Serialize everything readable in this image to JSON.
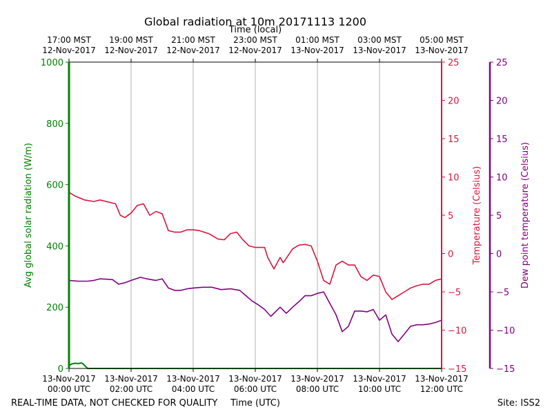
{
  "chart_data": {
    "type": "line",
    "title": "Global radiation at 10m 20171113 1200",
    "top_axis_label": "Time (local)",
    "xlabel": "Time (UTC)",
    "ylabel_left": "Avg global solar radiation (W/m)",
    "ylabel_right1": "Temperature (Celsius)",
    "ylabel_right2": "Dew point temperature (Celsius)",
    "xlim_hours_utc": [
      0,
      12
    ],
    "ylim_left": [
      0,
      1000
    ],
    "ylim_right": [
      -15,
      25
    ],
    "left_ticks": [
      "0",
      "200",
      "400",
      "600",
      "800",
      "1000"
    ],
    "left_tick_values": [
      0,
      200,
      400,
      600,
      800,
      1000
    ],
    "right_ticks": [
      "−15",
      "−10",
      "−5",
      "0",
      "5",
      "10",
      "15",
      "20",
      "25"
    ],
    "right_tick_values": [
      -15,
      -10,
      -5,
      0,
      5,
      10,
      15,
      20,
      25
    ],
    "bottom_ticks": [
      {
        "hour": 0,
        "line1": "13-Nov-2017",
        "line2": "00:00 UTC"
      },
      {
        "hour": 2,
        "line1": "13-Nov-2017",
        "line2": "02:00 UTC"
      },
      {
        "hour": 4,
        "line1": "13-Nov-2017",
        "line2": "04:00 UTC"
      },
      {
        "hour": 6,
        "line1": "13-Nov-2017",
        "line2": "06:00 UTC"
      },
      {
        "hour": 8,
        "line1": "13-Nov-2017",
        "line2": "08:00 UTC"
      },
      {
        "hour": 10,
        "line1": "13-Nov-2017",
        "line2": "10:00 UTC"
      },
      {
        "hour": 12,
        "line1": "13-Nov-2017",
        "line2": "12:00 UTC"
      }
    ],
    "top_ticks": [
      {
        "hour": 0,
        "line1": "17:00 MST",
        "line2": "12-Nov-2017"
      },
      {
        "hour": 2,
        "line1": "19:00 MST",
        "line2": "12-Nov-2017"
      },
      {
        "hour": 4,
        "line1": "21:00 MST",
        "line2": "12-Nov-2017"
      },
      {
        "hour": 6,
        "line1": "23:00 MST",
        "line2": "12-Nov-2017"
      },
      {
        "hour": 8,
        "line1": "01:00 MST",
        "line2": "13-Nov-2017"
      },
      {
        "hour": 10,
        "line1": "03:00 MST",
        "line2": "13-Nov-2017"
      },
      {
        "hour": 12,
        "line1": "05:00 MST",
        "line2": "13-Nov-2017"
      }
    ],
    "series": [
      {
        "name": "Avg global solar radiation",
        "axis": "left",
        "color": "#008000",
        "x": [
          0,
          0.1,
          0.2,
          0.3,
          0.4,
          0.45,
          0.5,
          0.55,
          0.6,
          12
        ],
        "y": [
          10,
          15,
          17,
          16,
          18,
          15,
          10,
          5,
          0,
          0
        ]
      },
      {
        "name": "Temperature",
        "axis": "right",
        "color": "#dc143c",
        "x": [
          0,
          0.2,
          0.5,
          0.8,
          1.0,
          1.5,
          1.65,
          1.8,
          2.0,
          2.2,
          2.4,
          2.6,
          2.8,
          3.0,
          3.2,
          3.4,
          3.5,
          3.6,
          3.8,
          4.0,
          4.2,
          4.5,
          4.8,
          5.0,
          5.2,
          5.4,
          5.6,
          5.8,
          6.0,
          6.3,
          6.4,
          6.6,
          6.8,
          6.9,
          7.0,
          7.2,
          7.4,
          7.6,
          7.8,
          8.0,
          8.2,
          8.4,
          8.6,
          8.8,
          9.0,
          9.2,
          9.4,
          9.6,
          9.8,
          10.0,
          10.2,
          10.4,
          10.6,
          10.8,
          11.0,
          11.2,
          11.4,
          11.6,
          11.8,
          12.0
        ],
        "y": [
          8,
          7.5,
          7.0,
          6.8,
          7.0,
          6.5,
          5.0,
          4.7,
          5.3,
          6.3,
          6.5,
          5.0,
          5.5,
          5.2,
          3.0,
          2.8,
          2.8,
          2.8,
          3.1,
          3.1,
          3.0,
          2.6,
          1.9,
          1.8,
          2.6,
          2.8,
          1.8,
          1.0,
          0.8,
          0.8,
          -0.5,
          -2.0,
          -0.5,
          -1.2,
          -0.6,
          0.6,
          1.1,
          1.2,
          1.0,
          -1.0,
          -3.5,
          -4.0,
          -1.5,
          -1.0,
          -1.5,
          -1.5,
          -3.0,
          -3.5,
          -2.8,
          -3.0,
          -5.0,
          -6.0,
          -5.5,
          -5.0,
          -4.5,
          -4.2,
          -4.0,
          -4.0,
          -3.5,
          -3.3
        ]
      },
      {
        "name": "Dew point temperature",
        "axis": "right2",
        "color": "#800080",
        "x": [
          0,
          0.3,
          0.6,
          0.8,
          1.0,
          1.4,
          1.6,
          1.8,
          2.0,
          2.3,
          2.5,
          2.8,
          3.0,
          3.2,
          3.4,
          3.6,
          3.8,
          4.0,
          4.3,
          4.6,
          4.9,
          5.2,
          5.5,
          5.7,
          5.9,
          6.1,
          6.3,
          6.5,
          6.8,
          7.0,
          7.2,
          7.4,
          7.6,
          7.8,
          8.0,
          8.2,
          8.4,
          8.6,
          8.8,
          9.0,
          9.2,
          9.4,
          9.6,
          9.8,
          10.0,
          10.2,
          10.4,
          10.6,
          10.8,
          11.0,
          11.2,
          11.4,
          11.6,
          11.8,
          12.0
        ],
        "y": [
          -3.5,
          -3.6,
          -3.6,
          -3.5,
          -3.3,
          -3.4,
          -4.0,
          -3.8,
          -3.5,
          -3.1,
          -3.3,
          -3.5,
          -3.3,
          -4.5,
          -4.8,
          -4.8,
          -4.6,
          -4.5,
          -4.4,
          -4.4,
          -4.7,
          -4.6,
          -4.8,
          -5.5,
          -6.2,
          -6.7,
          -7.3,
          -8.2,
          -7.0,
          -7.8,
          -7.0,
          -6.3,
          -5.5,
          -5.5,
          -5.2,
          -5.0,
          -6.5,
          -8.0,
          -10.2,
          -9.5,
          -7.5,
          -7.5,
          -7.6,
          -7.3,
          -8.7,
          -8.0,
          -10.5,
          -11.5,
          -10.5,
          -9.5,
          -9.3,
          -9.3,
          -9.2,
          -9.0,
          -8.7
        ]
      }
    ],
    "footer_left": "REAL-TIME DATA, NOT CHECKED FOR QUALITY",
    "footer_right": "Site: ISS2"
  }
}
